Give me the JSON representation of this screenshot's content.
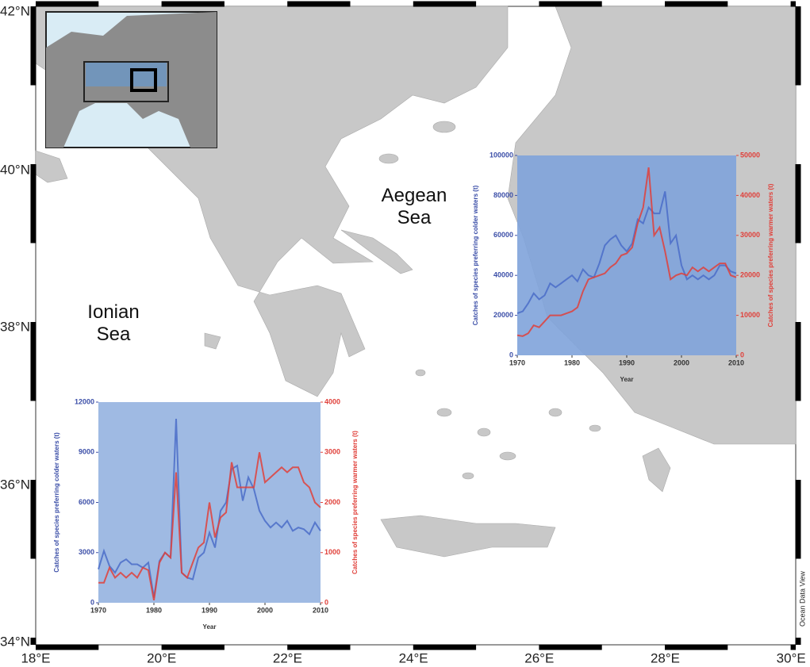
{
  "map": {
    "lat_labels": [
      "42°N",
      "40°N",
      "38°N",
      "36°N",
      "34°N"
    ],
    "lon_labels": [
      "18°E",
      "20°E",
      "22°E",
      "24°E",
      "26°E",
      "28°E",
      "30°E"
    ],
    "sea_labels": [
      "Aegean Sea",
      "Ionian Sea"
    ],
    "credit": "Ocean Data View"
  },
  "chart_data": [
    {
      "type": "line",
      "xlabel": "Year",
      "ylabel": "Catches of species preferring colder waters (t)",
      "y2label": "Catches of species preferring warmer waters (t)",
      "x": [
        1970,
        1971,
        1972,
        1973,
        1974,
        1975,
        1976,
        1977,
        1978,
        1979,
        1980,
        1981,
        1982,
        1983,
        1984,
        1985,
        1986,
        1987,
        1988,
        1989,
        1990,
        1991,
        1992,
        1993,
        1994,
        1995,
        1996,
        1997,
        1998,
        1999,
        2000,
        2001,
        2002,
        2003,
        2004,
        2005,
        2006,
        2007,
        2008,
        2009,
        2010
      ],
      "xlim": [
        1970,
        2010
      ],
      "xticks": [
        1970,
        1980,
        1990,
        2000,
        2010
      ],
      "ylim": [
        0,
        100000
      ],
      "yticks": [
        0,
        20000,
        40000,
        60000,
        80000,
        100000
      ],
      "y2lim": [
        0,
        50000
      ],
      "y2ticks": [
        0,
        10000,
        20000,
        30000,
        40000,
        50000
      ],
      "series": [
        {
          "color": "#4a6cc8",
          "values": [
            21000,
            22000,
            26000,
            31000,
            28000,
            30000,
            36000,
            34000,
            36000,
            38000,
            40000,
            37000,
            43000,
            40000,
            39000,
            46000,
            55000,
            58000,
            60000,
            55000,
            52000,
            56000,
            68000,
            66000,
            74000,
            71000,
            71000,
            82000,
            56000,
            60000,
            45000,
            38000,
            40000,
            38000,
            40000,
            38000,
            40000,
            45000,
            45000,
            42000,
            41000
          ]
        },
        {
          "color": "#e0403a",
          "axis": "y2",
          "values": [
            5000,
            4800,
            5500,
            7500,
            7000,
            8500,
            10000,
            10000,
            10000,
            10500,
            11000,
            12000,
            16000,
            19000,
            19500,
            20000,
            20500,
            22000,
            23000,
            25000,
            25500,
            27000,
            33000,
            37000,
            47000,
            30000,
            32000,
            26000,
            19000,
            20000,
            20500,
            20000,
            22000,
            21000,
            22000,
            21000,
            22000,
            23000,
            23000,
            20000,
            19500
          ]
        }
      ]
    },
    {
      "type": "line",
      "xlabel": "Year",
      "ylabel": "Catches of species preferring colder waters (t)",
      "y2label": "Catches of species preferring warmer waters (t)",
      "x": [
        1970,
        1971,
        1972,
        1973,
        1974,
        1975,
        1976,
        1977,
        1978,
        1979,
        1980,
        1981,
        1982,
        1983,
        1984,
        1985,
        1986,
        1987,
        1988,
        1989,
        1990,
        1991,
        1992,
        1993,
        1994,
        1995,
        1996,
        1997,
        1998,
        1999,
        2000,
        2001,
        2002,
        2003,
        2004,
        2005,
        2006,
        2007,
        2008,
        2009,
        2010
      ],
      "xlim": [
        1970,
        2010
      ],
      "xticks": [
        1970,
        1980,
        1990,
        2000,
        2010
      ],
      "ylim": [
        0,
        12000
      ],
      "yticks": [
        0,
        3000,
        6000,
        9000,
        12000
      ],
      "y2lim": [
        0,
        4000
      ],
      "y2ticks": [
        0,
        1000,
        2000,
        3000,
        4000
      ],
      "series": [
        {
          "color": "#4a6cc8",
          "values": [
            2000,
            3100,
            2200,
            1800,
            2400,
            2600,
            2300,
            2300,
            2100,
            2400,
            300,
            2500,
            3000,
            2700,
            11000,
            1800,
            1500,
            1400,
            2700,
            3000,
            4200,
            3300,
            5500,
            6000,
            8000,
            8200,
            6100,
            7500,
            6800,
            5500,
            4900,
            4500,
            4800,
            4500,
            4900,
            4300,
            4500,
            4400,
            4100,
            4800,
            4300
          ]
        },
        {
          "color": "#e0403a",
          "axis": "y2",
          "values": [
            400,
            400,
            700,
            500,
            600,
            500,
            600,
            500,
            700,
            650,
            50,
            800,
            1000,
            900,
            2600,
            600,
            500,
            800,
            1100,
            1200,
            2000,
            1300,
            1700,
            1800,
            2800,
            2300,
            2300,
            2300,
            2300,
            3000,
            2400,
            2500,
            2600,
            2700,
            2600,
            2700,
            2700,
            2400,
            2300,
            2000,
            1900
          ]
        }
      ]
    }
  ]
}
